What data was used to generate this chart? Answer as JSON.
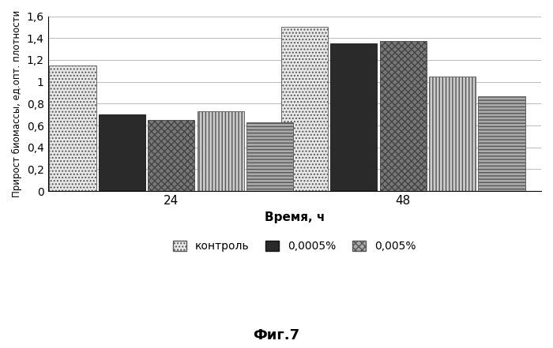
{
  "groups": [
    "24",
    "48"
  ],
  "group_centers": [
    0.25,
    0.72
  ],
  "series": [
    {
      "values": [
        1.15,
        1.5
      ],
      "hatch": "....",
      "facecolor": "#e8e8e8",
      "edgecolor": "#555555",
      "linewidth": 0.6
    },
    {
      "values": [
        0.7,
        1.35
      ],
      "hatch": "",
      "facecolor": "#2a2a2a",
      "edgecolor": "#111111",
      "linewidth": 0.6
    },
    {
      "values": [
        0.65,
        1.37
      ],
      "hatch": "xxxx",
      "facecolor": "#777777",
      "edgecolor": "#444444",
      "linewidth": 0.6
    },
    {
      "values": [
        0.73,
        1.05
      ],
      "hatch": "||||",
      "facecolor": "#cccccc",
      "edgecolor": "#555555",
      "linewidth": 0.6
    },
    {
      "values": [
        0.63,
        0.87
      ],
      "hatch": "----",
      "facecolor": "#aaaaaa",
      "edgecolor": "#555555",
      "linewidth": 0.6
    }
  ],
  "xlabel": "Время, ч",
  "ylabel": "Прирост биомассы, ед.опт. плотности",
  "ylim": [
    0,
    1.6
  ],
  "yticks": [
    0,
    0.2,
    0.4,
    0.6,
    0.8,
    1.0,
    1.2,
    1.4,
    1.6
  ],
  "ytick_labels": [
    "0",
    "0,2",
    "0,4",
    "0,6",
    "0,8",
    "1",
    "1,2",
    "1,4",
    "1,6"
  ],
  "fig_title": "Фиг.7",
  "legend": [
    {
      "label": "контроль",
      "hatch": "....",
      "facecolor": "#e8e8e8",
      "edgecolor": "#555555"
    },
    {
      "label": "0,0005%",
      "hatch": "xxxx",
      "facecolor": "#555555",
      "edgecolor": "#333333"
    },
    {
      "label": "0,005%",
      "hatch": "xxxx",
      "facecolor": "#aaaaaa",
      "edgecolor": "#555555"
    }
  ],
  "background_color": "#ffffff",
  "bar_width": 0.095,
  "bar_gap": 0.005
}
